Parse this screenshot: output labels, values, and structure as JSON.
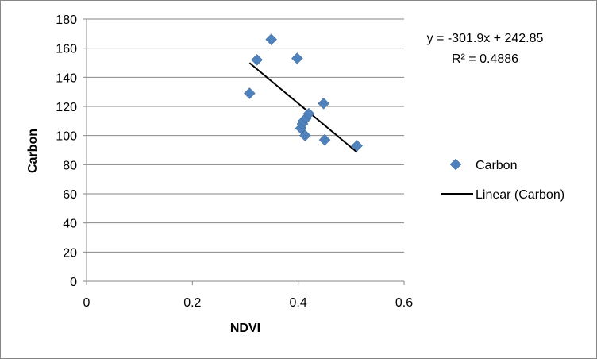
{
  "chart_data": {
    "type": "scatter",
    "xlabel": "NDVI",
    "ylabel": "Carbon",
    "xlim": [
      0,
      0.6
    ],
    "ylim": [
      0,
      180
    ],
    "x_ticks": [
      "0",
      "0.2",
      "0.4",
      "0.6"
    ],
    "y_ticks": [
      "0",
      "20",
      "40",
      "60",
      "80",
      "100",
      "120",
      "140",
      "160",
      "180"
    ],
    "x_tick_values": [
      0,
      0.2,
      0.4,
      0.6
    ],
    "y_tick_values": [
      0,
      20,
      40,
      60,
      80,
      100,
      120,
      140,
      160,
      180
    ],
    "grid": "horizontal",
    "legend_position": "right",
    "series": [
      {
        "name": "Carbon",
        "color": "#4f81bd",
        "marker": "diamond",
        "points": [
          {
            "x": 0.308,
            "y": 129
          },
          {
            "x": 0.322,
            "y": 152
          },
          {
            "x": 0.349,
            "y": 166
          },
          {
            "x": 0.398,
            "y": 153
          },
          {
            "x": 0.405,
            "y": 105
          },
          {
            "x": 0.408,
            "y": 108
          },
          {
            "x": 0.41,
            "y": 110
          },
          {
            "x": 0.413,
            "y": 100
          },
          {
            "x": 0.415,
            "y": 112
          },
          {
            "x": 0.42,
            "y": 115
          },
          {
            "x": 0.448,
            "y": 122
          },
          {
            "x": 0.45,
            "y": 97
          },
          {
            "x": 0.511,
            "y": 93
          }
        ]
      }
    ],
    "trendline": {
      "name": "Linear (Carbon)",
      "type": "linear",
      "slope": -301.9,
      "intercept": 242.85,
      "x_range": [
        0.308,
        0.511
      ],
      "color": "#000000",
      "equation_label": "y = -301.9x + 242.85",
      "r2_label": "R² = 0.4886"
    },
    "legend": [
      "Carbon",
      "Linear (Carbon)"
    ]
  }
}
